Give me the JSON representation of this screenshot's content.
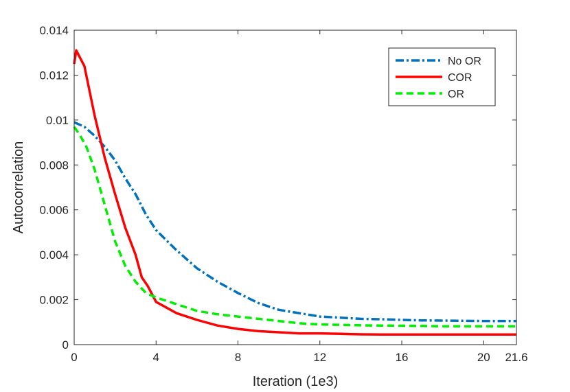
{
  "chart_data": {
    "type": "line",
    "title": "",
    "xlabel": "Iteration (1e3)",
    "ylabel": "Autocorrelation",
    "xlim": [
      0,
      21.6
    ],
    "ylim": [
      0,
      0.014
    ],
    "grid": false,
    "legend_position": "top-right",
    "xticks": [
      0,
      4,
      8,
      12,
      16,
      20,
      21.6
    ],
    "xtick_labels": [
      "0",
      "4",
      "8",
      "12",
      "16",
      "20",
      "21.6"
    ],
    "yticks": [
      0,
      0.002,
      0.004,
      0.006,
      0.008,
      0.01,
      0.012,
      0.014
    ],
    "ytick_labels": [
      "0",
      "0.002",
      "0.004",
      "0.006",
      "0.008",
      "0.01",
      "0.012",
      "0.014"
    ],
    "series": [
      {
        "name": "No OR",
        "color": "#0072BD",
        "style": "dash-dot",
        "x": [
          0,
          0.5,
          1,
          1.5,
          2,
          2.5,
          3,
          3.5,
          4,
          5,
          6,
          7,
          8,
          9,
          10,
          11,
          12,
          13,
          14,
          15,
          16,
          17,
          18,
          19,
          20,
          21,
          21.6
        ],
        "values": [
          0.0099,
          0.0097,
          0.0093,
          0.0088,
          0.0082,
          0.0074,
          0.0067,
          0.0058,
          0.0051,
          0.0042,
          0.0034,
          0.0028,
          0.0023,
          0.00185,
          0.00155,
          0.0014,
          0.00125,
          0.0012,
          0.00115,
          0.00113,
          0.0011,
          0.00108,
          0.00107,
          0.00106,
          0.00105,
          0.00105,
          0.00105
        ]
      },
      {
        "name": "COR",
        "color": "#FF0000",
        "style": "solid",
        "x": [
          0,
          0.1,
          0.5,
          1,
          1.5,
          2,
          2.5,
          3,
          3.3,
          3.6,
          4,
          5,
          6,
          7,
          8,
          9,
          10,
          11,
          12,
          13,
          14,
          15,
          16,
          17,
          18,
          19,
          20,
          21,
          21.6
        ],
        "values": [
          0.0125,
          0.0131,
          0.0124,
          0.0102,
          0.0083,
          0.0067,
          0.0052,
          0.004,
          0.003,
          0.0026,
          0.0019,
          0.0014,
          0.0011,
          0.00085,
          0.0007,
          0.0006,
          0.00055,
          0.0005,
          0.0005,
          0.00048,
          0.00046,
          0.00045,
          0.00045,
          0.00045,
          0.00045,
          0.00045,
          0.00045,
          0.00045,
          0.00045
        ]
      },
      {
        "name": "OR",
        "color": "#00EE00",
        "style": "dashed",
        "x": [
          0,
          0.3,
          0.6,
          1,
          1.5,
          2,
          2.5,
          3,
          3.5,
          4,
          5,
          6,
          7,
          8,
          9,
          10,
          11,
          12,
          13,
          14,
          15,
          16,
          17,
          18,
          19,
          20,
          21,
          21.6
        ],
        "values": [
          0.0097,
          0.0093,
          0.0088,
          0.0078,
          0.0062,
          0.0046,
          0.0035,
          0.0028,
          0.0023,
          0.0021,
          0.0018,
          0.0015,
          0.00135,
          0.00125,
          0.00115,
          0.00105,
          0.00095,
          0.0009,
          0.00088,
          0.00086,
          0.00085,
          0.00084,
          0.00083,
          0.00082,
          0.00082,
          0.00082,
          0.00082,
          0.00082
        ]
      }
    ]
  }
}
